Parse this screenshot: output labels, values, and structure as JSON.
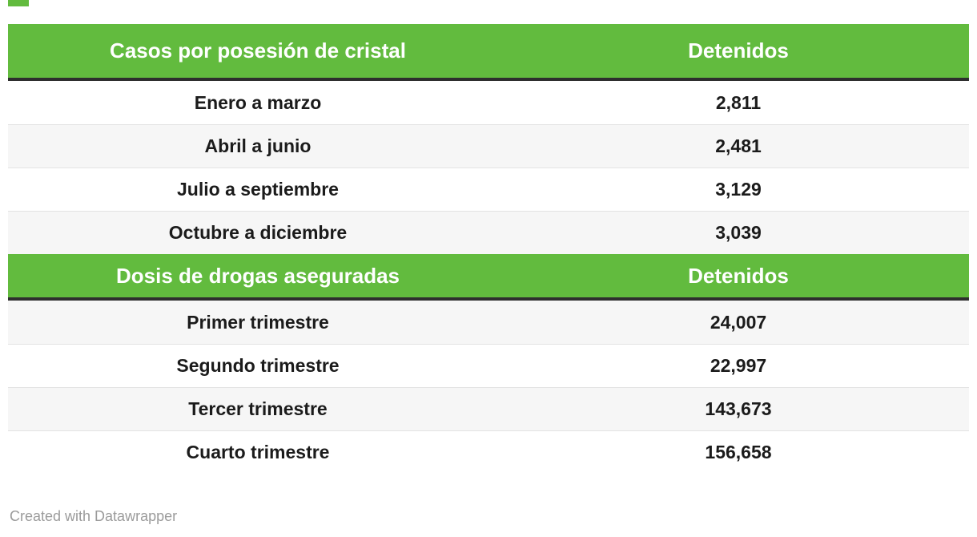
{
  "colors": {
    "accent": "#62BB3E",
    "header_divider": "#2E2E2E",
    "row_stripe": "#F6F6F6",
    "row_divider": "#E3E3E3",
    "text": "#1B1B1B",
    "header_text": "#FFFFFF",
    "attribution_text": "#9B9B9B"
  },
  "sections": [
    {
      "header": {
        "label": "Casos por posesión de cristal",
        "value_label": "Detenidos"
      },
      "rows": [
        {
          "label": "Enero a marzo",
          "value": "2,811"
        },
        {
          "label": "Abril a junio",
          "value": "2,481"
        },
        {
          "label": "Julio a septiembre",
          "value": "3,129"
        },
        {
          "label": "Octubre a diciembre",
          "value": "3,039"
        }
      ]
    },
    {
      "header": {
        "label": "Dosis de drogas aseguradas",
        "value_label": "Detenidos"
      },
      "rows": [
        {
          "label": "Primer trimestre",
          "value": "24,007"
        },
        {
          "label": "Segundo trimestre",
          "value": "22,997"
        },
        {
          "label": "Tercer trimestre",
          "value": "143,673"
        },
        {
          "label": "Cuarto trimestre",
          "value": "156,658"
        }
      ]
    }
  ],
  "footer": {
    "attribution": "Created with Datawrapper"
  },
  "chart_data": [
    {
      "type": "table",
      "title": "Casos por posesión de cristal",
      "columns": [
        "Casos por posesión de cristal",
        "Detenidos"
      ],
      "rows": [
        [
          "Enero a marzo",
          2811
        ],
        [
          "Abril a junio",
          2481
        ],
        [
          "Julio a septiembre",
          3129
        ],
        [
          "Octubre a diciembre",
          3039
        ]
      ]
    },
    {
      "type": "table",
      "title": "Dosis de drogas aseguradas",
      "columns": [
        "Dosis de drogas aseguradas",
        "Detenidos"
      ],
      "rows": [
        [
          "Primer trimestre",
          24007
        ],
        [
          "Segundo trimestre",
          22997
        ],
        [
          "Tercer trimestre",
          143673
        ],
        [
          "Cuarto trimestre",
          156658
        ]
      ]
    }
  ]
}
